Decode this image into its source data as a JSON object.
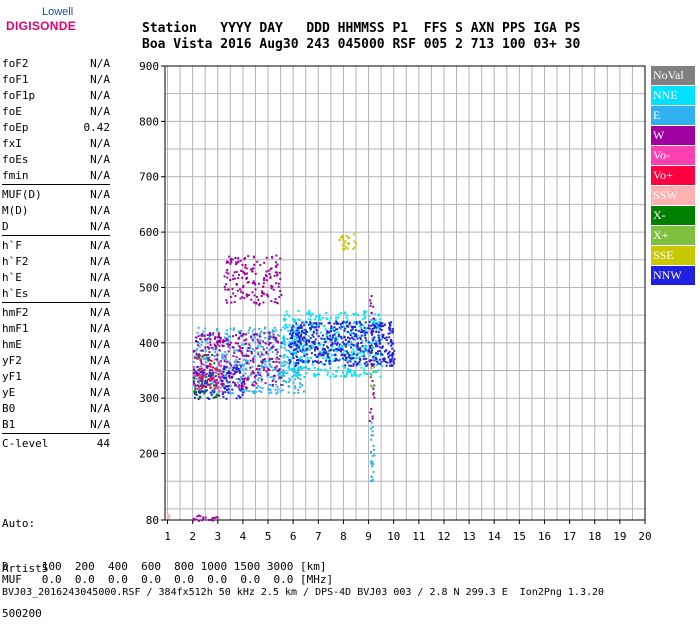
{
  "logo": {
    "line1": "Lowell",
    "line2": "DIGISONDE"
  },
  "header": {
    "row1": "Station   YYYY DAY   DDD HHMMSS P1  FFS S AXN PPS IGA PS",
    "row2": "Boa Vista 2016 Aug30 243 045000 RSF 005 2 713 100 03+ 30"
  },
  "params": [
    [
      {
        "name": "foF2",
        "value": "N/A"
      },
      {
        "name": "foF1",
        "value": "N/A"
      },
      {
        "name": "foF1p",
        "value": "N/A"
      },
      {
        "name": "foE",
        "value": "N/A"
      },
      {
        "name": "foEp",
        "value": "0.42"
      },
      {
        "name": "fxI",
        "value": "N/A"
      },
      {
        "name": "foEs",
        "value": "N/A"
      },
      {
        "name": "fmin",
        "value": "N/A"
      }
    ],
    [
      {
        "name": "MUF(D)",
        "value": "N/A"
      },
      {
        "name": "M(D)",
        "value": "N/A"
      },
      {
        "name": "D",
        "value": "N/A"
      }
    ],
    [
      {
        "name": "h`F",
        "value": "N/A"
      },
      {
        "name": "h`F2",
        "value": "N/A"
      },
      {
        "name": "h`E",
        "value": "N/A"
      },
      {
        "name": "h`Es",
        "value": "N/A"
      }
    ],
    [
      {
        "name": "hmF2",
        "value": "N/A"
      },
      {
        "name": "hmF1",
        "value": "N/A"
      },
      {
        "name": "hmE",
        "value": "N/A"
      },
      {
        "name": "yF2",
        "value": "N/A"
      },
      {
        "name": "yF1",
        "value": "N/A"
      },
      {
        "name": "yE",
        "value": "N/A"
      },
      {
        "name": "B0",
        "value": "N/A"
      },
      {
        "name": "B1",
        "value": "N/A"
      }
    ],
    [
      {
        "name": "C-level",
        "value": "44"
      }
    ]
  ],
  "auto": {
    "line1": "Auto:",
    "line2": "Artist5",
    "line3": "500200"
  },
  "bottom": {
    "d_row": "D     100  200  400  600  800 1000 1500 3000 [km]",
    "muf_row": "MUF   0.0  0.0  0.0  0.0  0.0  0.0  0.0  0.0 [MHz]",
    "footer": "BVJ03_2016243045000.RSF / 384fx512h 50 kHz 2.5 km / DPS-4D BVJ03 003 / 2.8 N 299.3 E  Ion2Png 1.3.20"
  },
  "legend": [
    {
      "label": "NoVal",
      "color": "#808080"
    },
    {
      "label": "NNE",
      "color": "#00e0ff"
    },
    {
      "label": "E",
      "color": "#30b0f0"
    },
    {
      "label": "W",
      "color": "#a000a0"
    },
    {
      "label": "Vo-",
      "color": "#ff40b0"
    },
    {
      "label": "Vo+",
      "color": "#ff0040"
    },
    {
      "label": "SSW",
      "color": "#ffb0b0"
    },
    {
      "label": "X-",
      "color": "#008000"
    },
    {
      "label": "X+",
      "color": "#80c040"
    },
    {
      "label": "SSE",
      "color": "#c8c800"
    },
    {
      "label": "NNW",
      "color": "#2020e0"
    }
  ],
  "chart_data": {
    "type": "scatter",
    "xlabel": "",
    "ylabel": "",
    "xlim": [
      0.9,
      20
    ],
    "ylim": [
      80,
      900
    ],
    "x_ticks": [
      1,
      2,
      3,
      4,
      5,
      6,
      7,
      8,
      9,
      10,
      11,
      12,
      13,
      14,
      15,
      16,
      17,
      18,
      19,
      20
    ],
    "y_ticks": [
      80,
      200,
      300,
      400,
      500,
      600,
      700,
      800,
      900
    ],
    "grid": true,
    "legend_placement": "right",
    "clusters": [
      {
        "series": "E",
        "fmin": 2.0,
        "fmax": 6.5,
        "hmin": 310,
        "hmax": 430,
        "n": 500
      },
      {
        "series": "NNE",
        "fmin": 5.5,
        "fmax": 9.5,
        "hmin": 340,
        "hmax": 460,
        "n": 450
      },
      {
        "series": "NNW",
        "fmin": 5.8,
        "fmax": 10.0,
        "hmin": 360,
        "hmax": 440,
        "n": 500
      },
      {
        "series": "W",
        "fmin": 2.0,
        "fmax": 5.5,
        "hmin": 320,
        "hmax": 420,
        "n": 300
      },
      {
        "series": "W",
        "fmin": 3.2,
        "fmax": 5.5,
        "hmin": 470,
        "hmax": 560,
        "n": 160
      },
      {
        "series": "NNW",
        "fmin": 2.0,
        "fmax": 4.0,
        "hmin": 300,
        "hmax": 360,
        "n": 120
      },
      {
        "series": "X-",
        "fmin": 2.0,
        "fmax": 3.0,
        "hmin": 300,
        "hmax": 380,
        "n": 40
      },
      {
        "series": "Vo-",
        "fmin": 2.0,
        "fmax": 3.2,
        "hmin": 310,
        "hmax": 380,
        "n": 40
      },
      {
        "series": "Vo+",
        "fmin": 2.0,
        "fmax": 3.0,
        "hmin": 320,
        "hmax": 380,
        "n": 25
      },
      {
        "series": "SSE",
        "fmin": 7.8,
        "fmax": 8.5,
        "hmin": 570,
        "hmax": 605,
        "n": 25
      },
      {
        "series": "W",
        "fmin": 9.0,
        "fmax": 9.2,
        "hmin": 260,
        "hmax": 500,
        "n": 30
      },
      {
        "series": "E",
        "fmin": 9.05,
        "fmax": 9.2,
        "hmin": 120,
        "hmax": 260,
        "n": 25
      },
      {
        "series": "X+",
        "fmin": 9.0,
        "fmax": 9.2,
        "hmin": 320,
        "hmax": 360,
        "n": 8
      },
      {
        "series": "W",
        "fmin": 1.9,
        "fmax": 3.0,
        "hmin": 80,
        "hmax": 90,
        "n": 20
      },
      {
        "series": "SSW",
        "fmin": 0.95,
        "fmax": 1.05,
        "hmin": 80,
        "hmax": 92,
        "n": 6
      }
    ]
  }
}
